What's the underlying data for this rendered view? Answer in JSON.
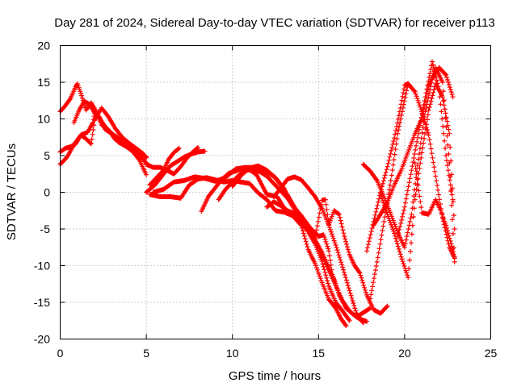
{
  "chart_data": {
    "type": "scatter",
    "title": "Day 281 of 2024, Sidereal Day-to-day VTEC variation (SDTVAR) for receiver p113",
    "xlabel": "GPS time / hours",
    "ylabel": "SDTVAR / TECUs",
    "xlim": [
      0,
      25
    ],
    "ylim": [
      -20,
      20
    ],
    "xticks": [
      "0",
      "5",
      "10",
      "15",
      "20",
      "25"
    ],
    "yticks": [
      "20",
      "15",
      "10",
      "5",
      "0",
      "-5",
      "-10",
      "-15",
      "-20"
    ],
    "grid": true,
    "marker": "plus",
    "color": "#ff0000",
    "series": [
      {
        "x": [
          0.0,
          0.3,
          0.6,
          0.9,
          1.0,
          1.2,
          1.5,
          1.8,
          2.1,
          2.4,
          2.8,
          3.2,
          3.6,
          4.0,
          4.4,
          4.8,
          5.0
        ],
        "y": [
          11.0,
          11.8,
          12.8,
          14.4,
          14.8,
          13.5,
          11.2,
          12.2,
          11.0,
          9.2,
          8.5,
          7.2,
          6.6,
          6.0,
          5.2,
          4.5,
          4.0
        ]
      },
      {
        "x": [
          0.0,
          0.3,
          0.6,
          0.9,
          1.2,
          1.6,
          1.9,
          2.0,
          2.3,
          2.6,
          3.0,
          3.5,
          4.0,
          4.5,
          5.0
        ],
        "y": [
          5.5,
          6.0,
          6.2,
          6.6,
          7.8,
          8.2,
          9.5,
          10.8,
          10.2,
          8.6,
          8.0,
          7.2,
          6.2,
          5.6,
          4.8
        ]
      },
      {
        "x": [
          0.0,
          0.4,
          0.8,
          1.2,
          1.5,
          1.8,
          2.0,
          2.4,
          2.8,
          3.2,
          3.6,
          4.0,
          4.4,
          4.8,
          5.0
        ],
        "y": [
          3.8,
          4.8,
          6.5,
          7.8,
          7.3,
          6.6,
          9.8,
          11.5,
          10.3,
          8.7,
          7.5,
          6.7,
          6.0,
          5.3,
          4.7
        ]
      },
      {
        "x": [
          0.8,
          1.1,
          1.4,
          1.7,
          2.0,
          2.3,
          2.6,
          3.0,
          3.4,
          3.8,
          4.2,
          4.6,
          5.0
        ],
        "y": [
          9.5,
          11.2,
          12.4,
          12.0,
          10.8,
          10.0,
          9.0,
          8.0,
          6.8,
          6.3,
          5.6,
          4.4,
          2.4
        ]
      },
      {
        "x": [
          5.0,
          5.5,
          6.0,
          6.4,
          6.8,
          7.2,
          7.6,
          8.0,
          8.4
        ],
        "y": [
          0.0,
          1.0,
          2.5,
          3.6,
          4.2,
          4.8,
          5.2,
          5.5,
          5.6
        ]
      },
      {
        "x": [
          5.0,
          5.4,
          5.8,
          6.2,
          6.6,
          7.0,
          7.4,
          7.8,
          8.0
        ],
        "y": [
          3.8,
          3.4,
          3.4,
          3.0,
          2.5,
          3.5,
          4.8,
          5.7,
          6.1
        ]
      },
      {
        "x": [
          5.2,
          5.6,
          6.0,
          6.3,
          6.6,
          6.9
        ],
        "y": [
          1.0,
          2.0,
          3.0,
          4.5,
          5.4,
          6.0
        ]
      },
      {
        "x": [
          5.2,
          5.8,
          6.4,
          7.0,
          7.5,
          8.0,
          8.5,
          9.0,
          9.5,
          10.0,
          10.5,
          11.0,
          11.5,
          12.0,
          12.5,
          13.0,
          13.5,
          14.0,
          14.4,
          14.8,
          15.2,
          15.6,
          16.0,
          16.3,
          16.6
        ],
        "y": [
          -0.3,
          -0.6,
          -0.6,
          -0.8,
          1.0,
          1.8,
          2.0,
          1.7,
          1.4,
          1.6,
          1.4,
          1.2,
          -0.1,
          -1.0,
          -2.5,
          -2.7,
          -3.2,
          -4.5,
          -7.8,
          -9.7,
          -12.3,
          -14.6,
          -15.8,
          -17.2,
          -18.2
        ]
      },
      {
        "x": [
          5.4,
          6.0,
          6.6,
          7.2,
          7.8,
          8.4,
          9.0,
          9.6,
          10.2,
          10.8,
          11.4,
          12.0,
          12.6,
          13.2,
          13.6,
          14.0,
          14.4,
          14.8,
          15.2,
          15.6,
          16.0,
          16.4,
          16.8
        ],
        "y": [
          0.0,
          0.4,
          1.4,
          1.6,
          2.1,
          1.9,
          1.5,
          2.0,
          3.2,
          3.4,
          2.4,
          -0.3,
          -0.6,
          -2.9,
          -3.1,
          -4.1,
          -5.4,
          -7.0,
          -9.4,
          -12.8,
          -15.0,
          -16.2,
          -17.5
        ]
      },
      {
        "x": [
          8.2,
          8.6,
          9.0,
          9.4,
          9.8,
          10.2,
          10.6,
          11.0,
          11.5,
          12.0,
          12.5,
          13.0,
          13.5,
          14.0,
          14.5,
          15.0,
          15.3,
          15.6,
          15.8,
          16.2,
          16.6,
          17.0,
          17.4,
          17.8
        ],
        "y": [
          -2.6,
          -0.6,
          0.6,
          1.8,
          2.6,
          2.9,
          3.3,
          3.4,
          3.2,
          2.8,
          2.0,
          0.5,
          -1.8,
          -3.2,
          -4.8,
          -6.0,
          -5.8,
          -8.0,
          -11.2,
          -14.0,
          -15.8,
          -16.6,
          -17.3,
          -17.6
        ]
      },
      {
        "x": [
          9.2,
          9.6,
          10.0,
          10.4,
          10.8,
          11.2,
          11.6,
          12.0,
          12.4,
          12.8,
          13.2,
          13.6,
          14.0,
          14.4,
          14.8,
          15.2,
          15.6,
          16.0
        ],
        "y": [
          -1.0,
          0.4,
          1.4,
          2.4,
          3.0,
          3.1,
          2.8,
          2.2,
          1.2,
          0.2,
          -0.8,
          -2.3,
          -3.6,
          -5.0,
          -6.5,
          -8.2,
          -10.3,
          -12.4
        ]
      },
      {
        "x": [
          10.0,
          10.5,
          11.0,
          11.5,
          12.0,
          12.4,
          12.8,
          13.2,
          13.6,
          14.0,
          14.4,
          14.8,
          15.2,
          15.6,
          16.0,
          16.4,
          16.8,
          17.2,
          17.6,
          18.0
        ],
        "y": [
          0.8,
          2.3,
          3.3,
          3.6,
          3.0,
          2.2,
          1.0,
          -0.4,
          -2.0,
          -3.6,
          -5.1,
          -6.6,
          -8.5,
          -10.6,
          -12.7,
          -14.8,
          -16.2,
          -17.0,
          -16.4,
          -15.8
        ]
      },
      {
        "x": [
          12.0,
          12.4,
          12.8,
          13.2,
          13.6,
          14.0,
          14.4,
          14.8,
          15.2,
          15.4,
          15.6,
          15.9,
          16.2,
          16.5,
          16.8,
          17.1,
          17.4,
          17.8,
          18.2,
          18.6,
          19.0
        ],
        "y": [
          -2.0,
          -1.3,
          -1.8,
          -2.5,
          -2.9,
          -3.5,
          -4.8,
          -6.3,
          -1.1,
          -1.0,
          -4.4,
          -2.5,
          -3.0,
          -6.0,
          -8.5,
          -10.0,
          -11.0,
          -14.0,
          -16.0,
          -16.5,
          -15.5
        ]
      },
      {
        "x": [
          12.4,
          12.8,
          13.2,
          13.6,
          14.0,
          14.4,
          14.8,
          15.2,
          15.6,
          16.0,
          16.4,
          16.8,
          17.2,
          17.6
        ],
        "y": [
          -0.6,
          0.5,
          1.8,
          2.1,
          1.7,
          0.6,
          -0.6,
          -2.2,
          -4.5,
          -7.2,
          -10.2,
          -13.4,
          -16.5,
          -17.8
        ]
      },
      {
        "x": [
          17.6,
          18.0,
          18.4,
          18.8,
          19.2,
          19.6,
          20.0,
          20.4,
          20.8,
          21.2,
          21.6,
          22.0,
          22.4,
          22.8
        ],
        "y": [
          3.8,
          2.9,
          1.6,
          -0.6,
          -3.0,
          -5.5,
          -7.5,
          -3.0,
          4.5,
          11.0,
          15.4,
          17.0,
          16.0,
          13.0
        ]
      },
      {
        "x": [
          17.8,
          18.2,
          18.6,
          19.0,
          19.4,
          19.8,
          20.0,
          20.2
        ],
        "y": [
          -8.0,
          -4.0,
          0.0,
          3.5,
          7.4,
          12.0,
          14.6,
          14.8
        ]
      },
      {
        "x": [
          18.0,
          18.4,
          18.8,
          19.2,
          19.6,
          19.9,
          20.2,
          20.6,
          21.0,
          21.4,
          21.8,
          22.2,
          22.6,
          22.9
        ],
        "y": [
          -14.5,
          -9.5,
          -4.0,
          1.6,
          8.0,
          11.5,
          14.8,
          13.7,
          11.0,
          7.8,
          2.2,
          -3.5,
          -7.5,
          -9.0
        ]
      },
      {
        "x": [
          18.2,
          18.6,
          19.0,
          19.4,
          19.8,
          20.2,
          20.6,
          21.0,
          21.4,
          21.8,
          22.2,
          22.6,
          22.9
        ],
        "y": [
          -4.5,
          -3.0,
          -1.4,
          1.0,
          3.0,
          5.5,
          8.0,
          10.0,
          14.5,
          17.0,
          15.0,
          4.0,
          -9.5
        ]
      },
      {
        "x": [
          18.6,
          19.0,
          19.4,
          19.8,
          20.2,
          20.6,
          21.0,
          21.4,
          21.8,
          22.2,
          22.6,
          22.9
        ],
        "y": [
          -0.2,
          -3.0,
          -5.6,
          -8.8,
          -11.6,
          -1.0,
          5.4,
          11.2,
          14.8,
          13.0,
          8.0,
          -5.0
        ]
      },
      {
        "x": [
          19.6,
          20.0,
          20.4,
          20.8,
          21.2,
          21.6,
          22.0,
          22.4,
          22.8
        ],
        "y": [
          -6.0,
          -2.0,
          3.0,
          8.0,
          13.0,
          17.8,
          14.0,
          5.0,
          -1.0
        ]
      },
      {
        "x": [
          20.6,
          21.0,
          21.4,
          21.8,
          22.1,
          22.4,
          22.7,
          22.9
        ],
        "y": [
          4.0,
          -2.8,
          -3.0,
          -1.0,
          -2.5,
          -4.5,
          -7.0,
          -8.8
        ]
      }
    ]
  }
}
